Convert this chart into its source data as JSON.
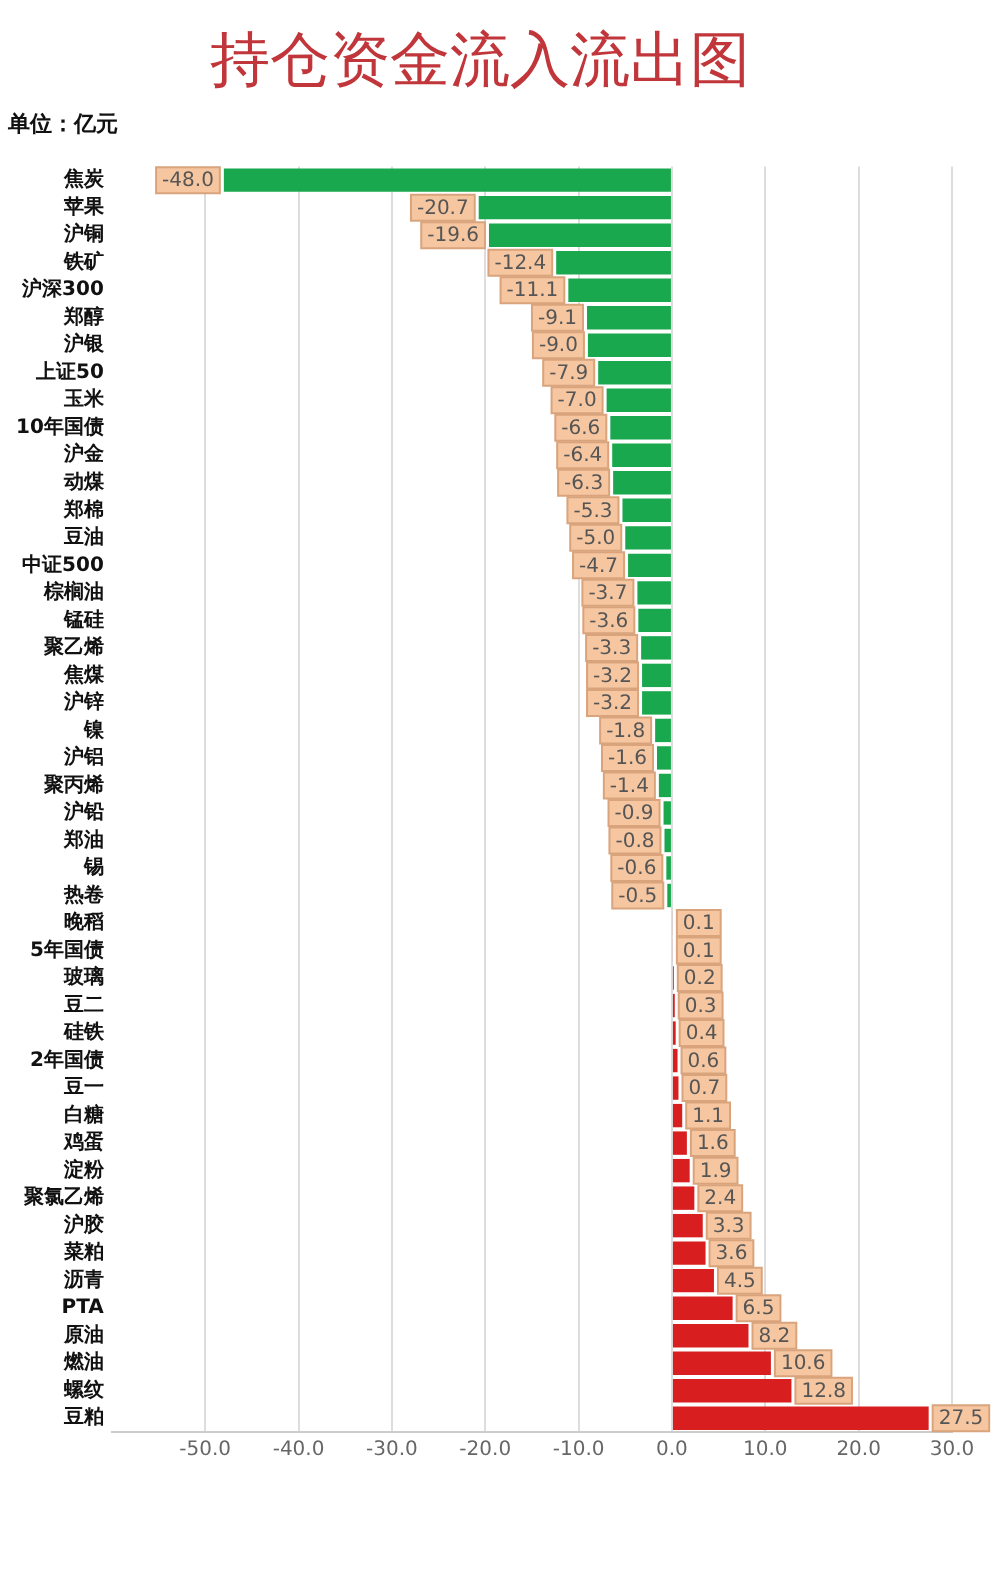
{
  "chart_data": {
    "type": "bar",
    "orientation": "horizontal",
    "title": "持仓资金流入流出图",
    "subtitle": "单位：亿元",
    "categories": [
      "焦炭",
      "苹果",
      "沪铜",
      "铁矿",
      "沪深300",
      "郑醇",
      "沪银",
      "上证50",
      "玉米",
      "10年国债",
      "沪金",
      "动煤",
      "郑棉",
      "豆油",
      "中证500",
      "棕榈油",
      "锰硅",
      "聚乙烯",
      "焦煤",
      "沪锌",
      "镍",
      "沪铝",
      "聚丙烯",
      "沪铅",
      "郑油",
      "锡",
      "热卷",
      "晚稻",
      "5年国债",
      "玻璃",
      "豆二",
      "硅铁",
      "2年国债",
      "豆一",
      "白糖",
      "鸡蛋",
      "淀粉",
      "聚氯乙烯",
      "沪胶",
      "菜粕",
      "沥青",
      "PTA",
      "原油",
      "燃油",
      "螺纹",
      "豆粕"
    ],
    "values": [
      -48.0,
      -20.7,
      -19.6,
      -12.4,
      -11.1,
      -9.1,
      -9.0,
      -7.9,
      -7.0,
      -6.6,
      -6.4,
      -6.3,
      -5.3,
      -5.0,
      -4.7,
      -3.7,
      -3.6,
      -3.3,
      -3.2,
      -3.2,
      -1.8,
      -1.6,
      -1.4,
      -0.9,
      -0.8,
      -0.6,
      -0.5,
      0.1,
      0.1,
      0.2,
      0.3,
      0.4,
      0.6,
      0.7,
      1.1,
      1.6,
      1.9,
      2.4,
      3.3,
      3.6,
      4.5,
      6.5,
      8.2,
      10.6,
      12.8,
      27.5
    ],
    "value_labels": [
      "-48.0",
      "-20.7",
      "-19.6",
      "-12.4",
      "-11.1",
      "-9.1",
      "-9.0",
      "-7.9",
      "-7.0",
      "-6.6",
      "-6.4",
      "-6.3",
      "-5.3",
      "-5.0",
      "-4.7",
      "-3.7",
      "-3.6",
      "-3.3",
      "-3.2",
      "-3.2",
      "-1.8",
      "-1.6",
      "-1.4",
      "-0.9",
      "-0.8",
      "-0.6",
      "-0.5",
      "0.1",
      "0.1",
      "0.2",
      "0.3",
      "0.4",
      "0.6",
      "0.7",
      "1.1",
      "1.6",
      "1.9",
      "2.4",
      "3.3",
      "3.6",
      "4.5",
      "6.5",
      "8.2",
      "10.6",
      "12.8",
      "27.5"
    ],
    "colors": [
      "#1aa84e",
      "#1aa84e",
      "#1aa84e",
      "#1aa84e",
      "#1aa84e",
      "#1aa84e",
      "#1aa84e",
      "#1aa84e",
      "#1aa84e",
      "#1aa84e",
      "#1aa84e",
      "#1aa84e",
      "#1aa84e",
      "#1aa84e",
      "#1aa84e",
      "#1aa84e",
      "#1aa84e",
      "#1aa84e",
      "#1aa84e",
      "#1aa84e",
      "#1aa84e",
      "#1aa84e",
      "#1aa84e",
      "#1aa84e",
      "#1aa84e",
      "#1aa84e",
      "#1aa84e",
      "#d81e1e",
      "#d81e1e",
      "#d81e1e",
      "#d81e1e",
      "#d81e1e",
      "#d81e1e",
      "#d81e1e",
      "#d81e1e",
      "#d81e1e",
      "#d81e1e",
      "#d81e1e",
      "#d81e1e",
      "#d81e1e",
      "#d81e1e",
      "#d81e1e",
      "#d81e1e",
      "#d81e1e",
      "#d81e1e",
      "#d81e1e"
    ],
    "xlim": [
      -60,
      30
    ],
    "xticks": [
      {
        "value": -50,
        "label": "-50.0"
      },
      {
        "value": -40,
        "label": "-40.0"
      },
      {
        "value": -30,
        "label": "-30.0"
      },
      {
        "value": -20,
        "label": "-20.0"
      },
      {
        "value": -10,
        "label": "-10.0"
      },
      {
        "value": 0,
        "label": "0.0"
      },
      {
        "value": 10,
        "label": "10.0"
      },
      {
        "value": 20,
        "label": "20.0"
      },
      {
        "value": 30,
        "label": "30.0"
      }
    ],
    "grid": "x",
    "legend": false
  }
}
